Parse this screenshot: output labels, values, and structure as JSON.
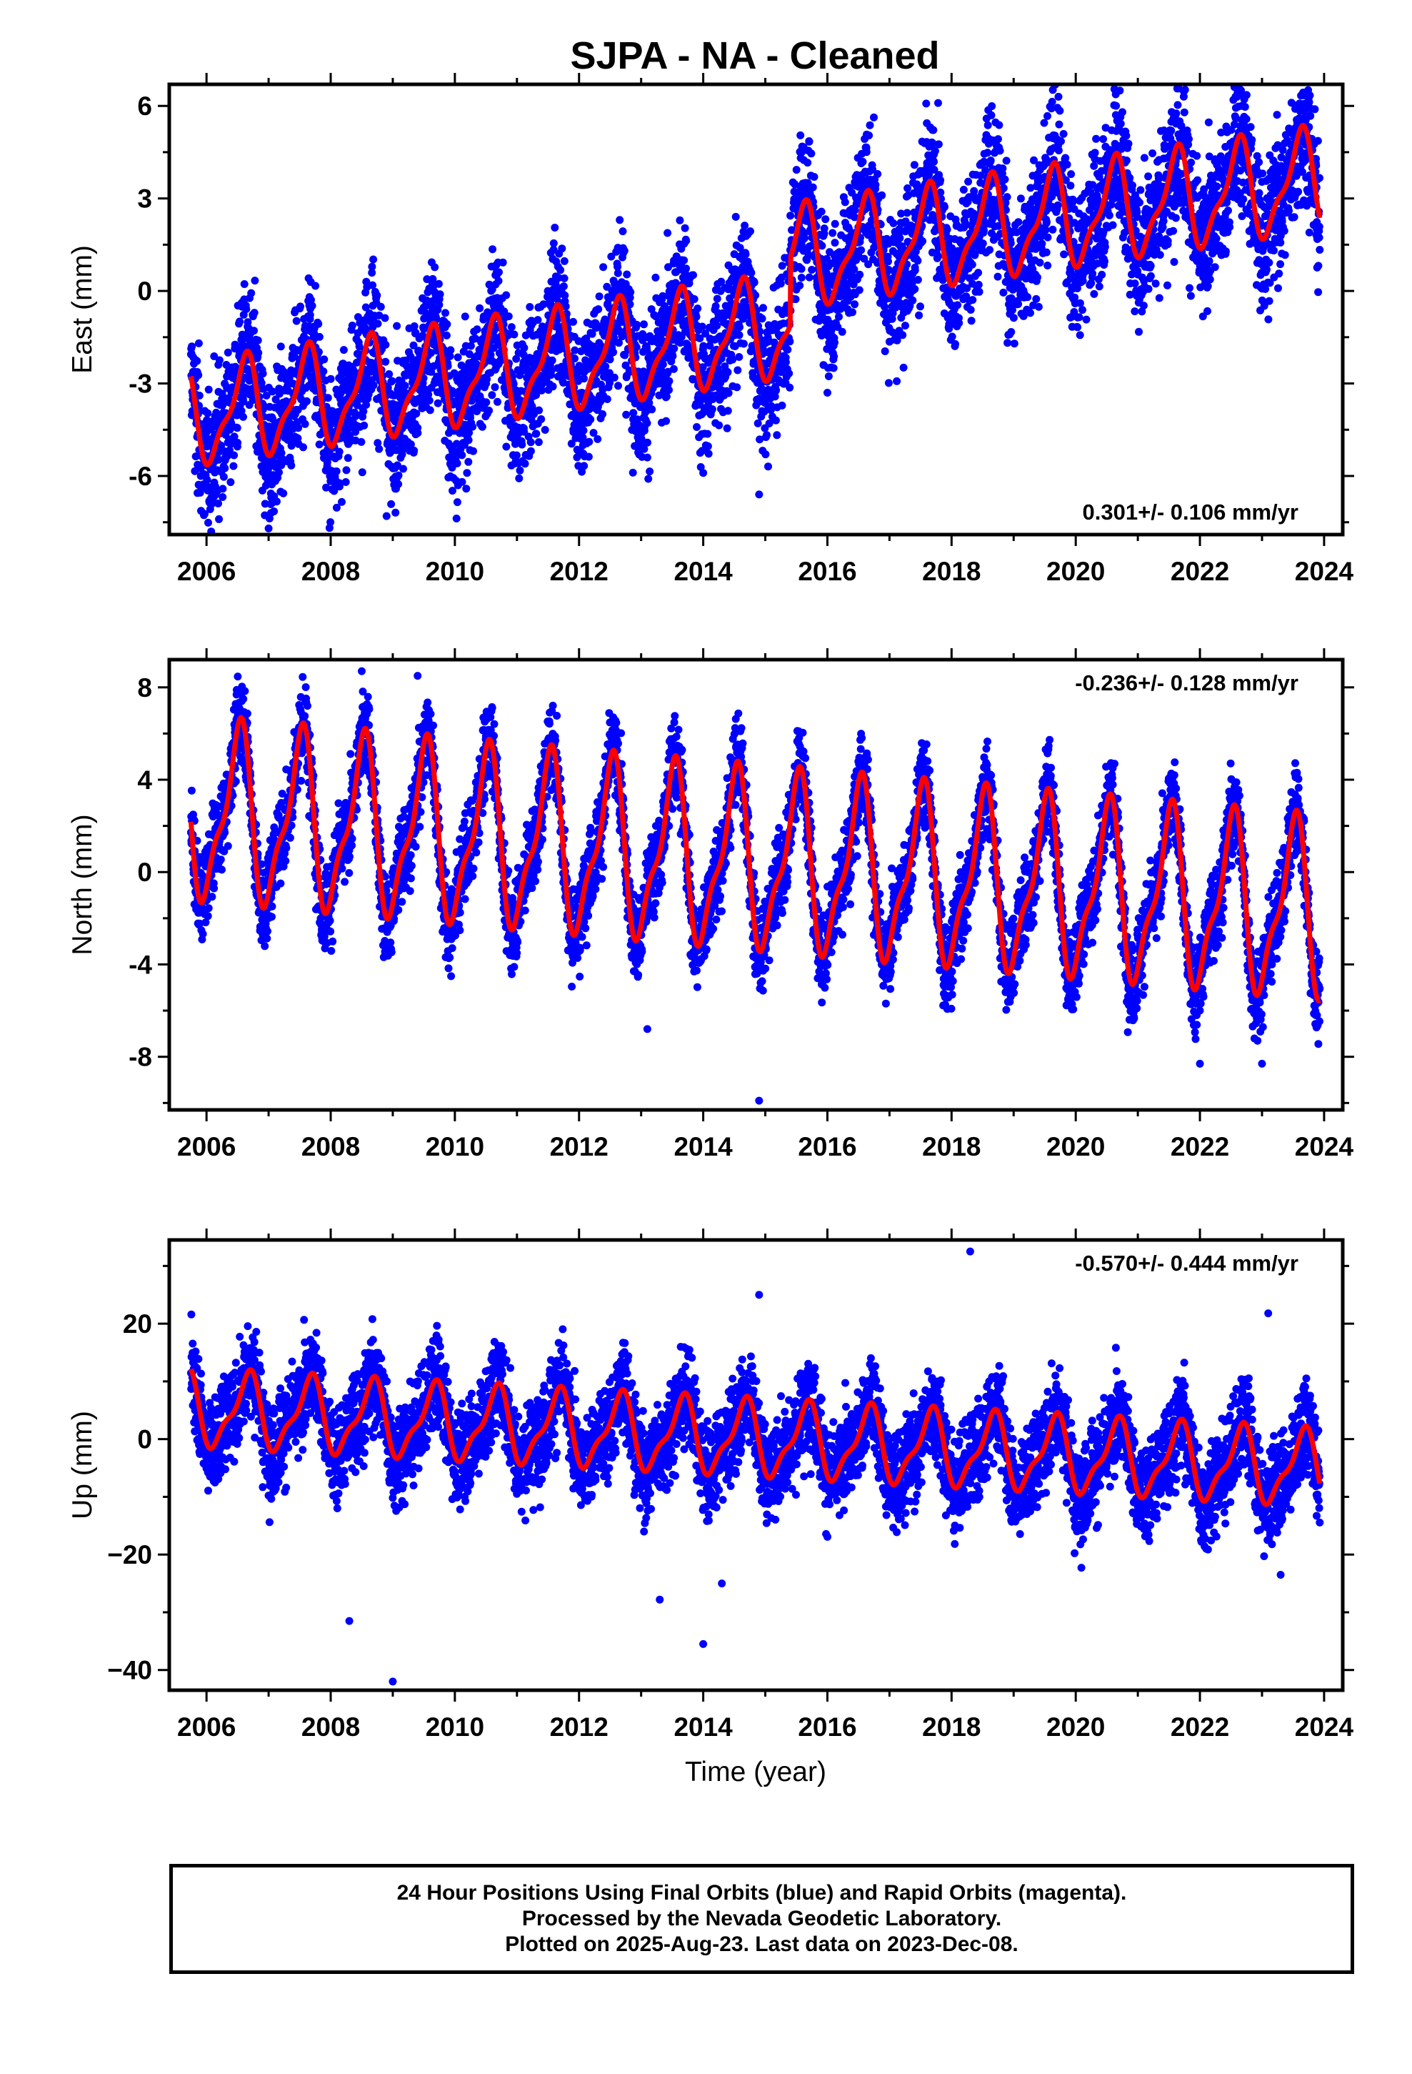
{
  "chart_data": {
    "title": "SJPA  - NA - Cleaned",
    "type": "scatter",
    "xlabel": "Time (year)",
    "xlim": [
      2005.4,
      2024.3
    ],
    "xticks": [
      2006,
      2008,
      2010,
      2012,
      2014,
      2016,
      2018,
      2020,
      2022,
      2024
    ],
    "xticklabels": [
      "2006",
      "2008",
      "2010",
      "2012",
      "2014",
      "2016",
      "2018",
      "2020",
      "2022",
      "2024"
    ],
    "data_start": 2005.75,
    "data_end": 2023.93,
    "series_colors": {
      "daily_positions": "#0000ff",
      "model_fit": "#ff0000"
    },
    "panels": [
      {
        "id": "east",
        "ylabel": "East (mm)",
        "ylim": [
          -7.9,
          6.7
        ],
        "yticks": [
          -6,
          -3,
          0,
          3,
          6
        ],
        "yticklabels": [
          "-6",
          "-3",
          "0",
          "3",
          "6"
        ],
        "rate_label": "0.301+/- 0.106 mm/yr",
        "rate_position": "bottom-right",
        "model": {
          "offset": -4.0,
          "trend": 0.301,
          "annual_amp": 1.5,
          "annual_phase": 2006.6,
          "offsets": [
            {
              "epoch": 2015.4,
              "size": 2.2
            }
          ],
          "noise_sd": 1.1
        },
        "outliers": [
          {
            "x": 2006.2,
            "y": -7.4
          },
          {
            "x": 2007.0,
            "y": -7.7
          },
          {
            "x": 2008.9,
            "y": -7.3
          },
          {
            "x": 2013.1,
            "y": -5.4
          },
          {
            "x": 2014.0,
            "y": -5.9
          },
          {
            "x": 2014.9,
            "y": -6.6
          },
          {
            "x": 2016.0,
            "y": -3.3
          },
          {
            "x": 2016.1,
            "y": -2.5
          }
        ]
      },
      {
        "id": "north",
        "ylabel": "North (mm)",
        "ylim": [
          -10.3,
          9.2
        ],
        "yticks": [
          -8,
          -4,
          0,
          4,
          8
        ],
        "yticklabels": [
          "-8",
          "-4",
          "0",
          "4",
          "8"
        ],
        "rate_label": "-0.236+/- 0.128 mm/yr",
        "rate_position": "top-right",
        "model": {
          "offset": 2.5,
          "trend": -0.236,
          "annual_amp": 3.5,
          "annual_phase": 2006.5,
          "offsets": [],
          "noise_sd": 0.9
        },
        "outliers": [
          {
            "x": 2008.5,
            "y": 8.7
          },
          {
            "x": 2009.4,
            "y": 8.5
          },
          {
            "x": 2013.1,
            "y": -6.8
          },
          {
            "x": 2014.9,
            "y": -9.9
          },
          {
            "x": 2022.0,
            "y": -8.3
          },
          {
            "x": 2023.0,
            "y": -8.3
          }
        ]
      },
      {
        "id": "up",
        "ylabel": "Up (mm)",
        "ylim": [
          -43.5,
          34.5
        ],
        "yticks": [
          -40,
          -20,
          0,
          20
        ],
        "yticklabels": [
          "−40",
          "−20",
          "0",
          "20"
        ],
        "rate_label": "-0.570+/- 0.444 mm/yr",
        "rate_position": "top-right",
        "model": {
          "offset": 5.0,
          "trend": -0.57,
          "annual_amp": 6.0,
          "annual_phase": 2006.65,
          "offsets": [],
          "noise_sd": 4.0
        },
        "outliers": [
          {
            "x": 2008.3,
            "y": -31.5
          },
          {
            "x": 2009.0,
            "y": -42.0
          },
          {
            "x": 2013.3,
            "y": -27.8
          },
          {
            "x": 2014.0,
            "y": -35.5
          },
          {
            "x": 2014.3,
            "y": -25.0
          },
          {
            "x": 2014.9,
            "y": 25.0
          },
          {
            "x": 2018.3,
            "y": 32.5
          },
          {
            "x": 2023.3,
            "y": -23.5
          },
          {
            "x": 2023.1,
            "y": 21.8
          }
        ]
      }
    ]
  },
  "footer": {
    "line1": "24 Hour Positions Using Final Orbits (blue) and Rapid Orbits (magenta).",
    "line2": "Processed by the Nevada Geodetic Laboratory.",
    "line3": "Plotted on 2025-Aug-23. Last data on 2023-Dec-08."
  }
}
